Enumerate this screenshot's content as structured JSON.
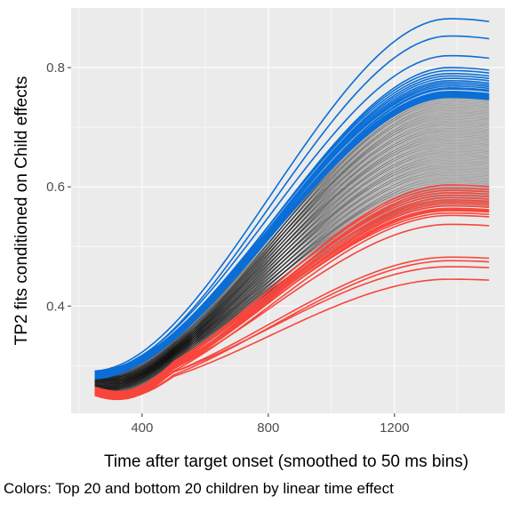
{
  "chart_data": {
    "type": "line",
    "xlabel": "Time after target onset (smoothed to 50 ms bins)",
    "ylabel": "TP2 fits conditioned on Child effects",
    "caption": "Colors: Top 20 and bottom 20 children by linear time effect",
    "xlim": [
      175,
      1550
    ],
    "ylim": [
      0.22,
      0.9
    ],
    "x_ticks": [
      400,
      800,
      1200
    ],
    "x_tick_labels": [
      "400",
      "800",
      "1200"
    ],
    "y_ticks": [
      0.4,
      0.6,
      0.8
    ],
    "y_tick_labels": [
      "0.4",
      "0.6",
      "0.8"
    ],
    "grid": true,
    "x_start": 250,
    "x_end": 1500,
    "group_colors": {
      "top20": "#0a6ed6",
      "bottom20": "#f8453b",
      "middle": "#000000"
    },
    "panel_background": "#ebebeb",
    "series_groups": [
      {
        "group": "top20",
        "start_values": [
          0.291,
          0.286,
          0.289,
          0.278,
          0.284,
          0.288,
          0.282,
          0.285,
          0.287,
          0.283,
          0.281,
          0.29,
          0.279,
          0.284,
          0.286,
          0.282,
          0.288,
          0.28,
          0.285,
          0.283
        ],
        "end_values": [
          0.882,
          0.853,
          0.82,
          0.8,
          0.795,
          0.79,
          0.786,
          0.782,
          0.778,
          0.775,
          0.772,
          0.769,
          0.766,
          0.764,
          0.76,
          0.758,
          0.756,
          0.754,
          0.752,
          0.75
        ]
      },
      {
        "group": "bottom20",
        "start_values": [
          0.255,
          0.262,
          0.25,
          0.258,
          0.26,
          0.253,
          0.264,
          0.256,
          0.252,
          0.259,
          0.261,
          0.254,
          0.257,
          0.263,
          0.251,
          0.258,
          0.26,
          0.255,
          0.262,
          0.257
        ],
        "end_values": [
          0.603,
          0.598,
          0.594,
          0.59,
          0.586,
          0.582,
          0.578,
          0.575,
          0.572,
          0.568,
          0.564,
          0.562,
          0.56,
          0.556,
          0.552,
          0.537,
          0.482,
          0.476,
          0.466,
          0.445
        ]
      },
      {
        "group": "middle",
        "n_series": 90,
        "start_range": [
          0.255,
          0.285
        ],
        "end_range": [
          0.57,
          0.76
        ]
      }
    ]
  }
}
